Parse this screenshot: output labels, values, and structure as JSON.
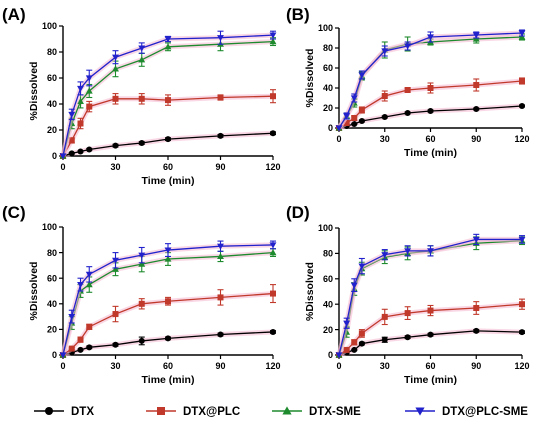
{
  "chart_data": [
    {
      "type": "line",
      "panel_label": "(A)",
      "xlabel": "Time (min)",
      "ylabel": "%Dissolved",
      "xlim": [
        0,
        120
      ],
      "ylim": [
        0,
        100
      ],
      "x_ticks": [
        0,
        30,
        60,
        90,
        120
      ],
      "y_ticks": [
        0,
        20,
        40,
        60,
        80,
        100
      ],
      "x": [
        0,
        5,
        10,
        15,
        30,
        45,
        60,
        90,
        120
      ],
      "series": [
        {
          "name": "DTX",
          "values": [
            0,
            2,
            3.5,
            5,
            8,
            10,
            13,
            15.5,
            17.5
          ],
          "errors": [
            0,
            0.5,
            0.5,
            0.8,
            1,
            1,
            1,
            1,
            1
          ]
        },
        {
          "name": "DTX@PLC",
          "values": [
            0,
            12,
            25,
            38,
            44,
            44,
            43,
            45,
            46
          ],
          "errors": [
            0,
            2,
            4,
            4,
            4,
            4,
            4,
            2,
            5
          ]
        },
        {
          "name": "DTX-SME",
          "values": [
            0,
            25,
            42,
            50,
            67,
            74,
            84,
            86,
            88
          ],
          "errors": [
            0,
            4,
            5,
            5,
            6,
            5,
            3,
            5,
            3
          ]
        },
        {
          "name": "DTX@PLC-SME",
          "values": [
            0,
            32,
            52,
            60,
            76,
            83,
            90,
            91,
            93
          ],
          "errors": [
            0,
            4,
            5,
            6,
            5,
            4,
            2,
            5,
            3
          ]
        }
      ]
    },
    {
      "type": "line",
      "panel_label": "(B)",
      "xlabel": "Time (min)",
      "ylabel": "%Dissolved",
      "xlim": [
        0,
        120
      ],
      "ylim": [
        0,
        100
      ],
      "x_ticks": [
        0,
        30,
        60,
        90,
        120
      ],
      "y_ticks": [
        0,
        20,
        40,
        60,
        80,
        100
      ],
      "x": [
        0,
        5,
        10,
        15,
        30,
        45,
        60,
        90,
        120
      ],
      "series": [
        {
          "name": "DTX",
          "values": [
            0,
            2,
            4,
            7,
            11,
            15,
            17,
            19,
            22
          ],
          "errors": [
            0,
            0.5,
            0.5,
            1,
            1,
            1,
            1,
            1,
            1
          ]
        },
        {
          "name": "DTX@PLC",
          "values": [
            0,
            5,
            10,
            18,
            32,
            38,
            40,
            43,
            47
          ],
          "errors": [
            0,
            1,
            2,
            3,
            5,
            2,
            5,
            6,
            3
          ]
        },
        {
          "name": "DTX-SME",
          "values": [
            0,
            12,
            25,
            52,
            78,
            84,
            86,
            89,
            91
          ],
          "errors": [
            0,
            3,
            4,
            4,
            8,
            7,
            3,
            4,
            3
          ]
        },
        {
          "name": "DTX@PLC-SME",
          "values": [
            0,
            12,
            30,
            53,
            77,
            82,
            91,
            93,
            95
          ],
          "errors": [
            0,
            3,
            4,
            4,
            5,
            4,
            5,
            3,
            3
          ]
        }
      ]
    },
    {
      "type": "line",
      "panel_label": "(C)",
      "xlabel": "Time (min)",
      "ylabel": "%Dissolved",
      "xlim": [
        0,
        120
      ],
      "ylim": [
        0,
        100
      ],
      "x_ticks": [
        0,
        30,
        60,
        90,
        120
      ],
      "y_ticks": [
        0,
        20,
        40,
        60,
        80,
        100
      ],
      "x": [
        0,
        5,
        10,
        15,
        30,
        45,
        60,
        90,
        120
      ],
      "series": [
        {
          "name": "DTX",
          "values": [
            0,
            2,
            4,
            6,
            8,
            11,
            13,
            16,
            18
          ],
          "errors": [
            0,
            0.5,
            0.5,
            1,
            1,
            3,
            1,
            1,
            1
          ]
        },
        {
          "name": "DTX@PLC",
          "values": [
            0,
            5,
            12,
            22,
            32,
            40,
            42,
            45,
            48
          ],
          "errors": [
            0,
            1,
            2,
            2,
            6,
            4,
            3,
            6,
            7
          ]
        },
        {
          "name": "DTX-SME",
          "values": [
            0,
            25,
            50,
            55,
            67,
            71,
            75,
            77,
            80
          ],
          "errors": [
            0,
            5,
            5,
            6,
            5,
            6,
            5,
            4,
            3
          ]
        },
        {
          "name": "DTX@PLC-SME",
          "values": [
            0,
            30,
            55,
            63,
            74,
            78,
            82,
            85,
            86
          ],
          "errors": [
            0,
            5,
            5,
            6,
            6,
            6,
            5,
            4,
            3
          ]
        }
      ]
    },
    {
      "type": "line",
      "panel_label": "(D)",
      "xlabel": "Time (min)",
      "ylabel": "%Dissolved",
      "xlim": [
        0,
        120
      ],
      "ylim": [
        0,
        100
      ],
      "x_ticks": [
        0,
        30,
        60,
        90,
        120
      ],
      "y_ticks": [
        0,
        20,
        40,
        60,
        80,
        100
      ],
      "x": [
        0,
        5,
        10,
        15,
        30,
        45,
        60,
        90,
        120
      ],
      "series": [
        {
          "name": "DTX",
          "values": [
            0,
            2,
            4,
            9,
            12,
            14,
            16,
            19,
            18
          ],
          "errors": [
            0,
            0.5,
            0.5,
            1,
            2,
            1,
            1,
            1,
            1
          ]
        },
        {
          "name": "DTX@PLC",
          "values": [
            0,
            4,
            10,
            17,
            30,
            33,
            35,
            37,
            40
          ],
          "errors": [
            0,
            1,
            2,
            3,
            6,
            5,
            4,
            5,
            4
          ]
        },
        {
          "name": "DTX-SME",
          "values": [
            0,
            18,
            52,
            68,
            77,
            80,
            82,
            88,
            90
          ],
          "errors": [
            0,
            4,
            5,
            5,
            5,
            5,
            4,
            5,
            3
          ]
        },
        {
          "name": "DTX@PLC-SME",
          "values": [
            0,
            25,
            55,
            70,
            79,
            82,
            82,
            91,
            91
          ],
          "errors": [
            0,
            4,
            5,
            6,
            4,
            4,
            4,
            4,
            3
          ]
        }
      ]
    }
  ],
  "legend": {
    "placement": "bottom",
    "items": [
      {
        "label": "DTX",
        "color": "#000000",
        "marker": "circle"
      },
      {
        "label": "DTX@PLC",
        "color": "#c0392b",
        "marker": "square"
      },
      {
        "label": "DTX-SME",
        "color": "#1e8a2e",
        "marker": "triangle-up"
      },
      {
        "label": "DTX@PLC-SME",
        "color": "#2222cc",
        "marker": "triangle-down"
      }
    ]
  },
  "series_colors": {
    "DTX": "#000000",
    "DTX@PLC": "#c0392b",
    "DTX-SME": "#1e8a2e",
    "DTX@PLC-SME": "#2222cc",
    "error_halo": "#f4b6cf"
  }
}
